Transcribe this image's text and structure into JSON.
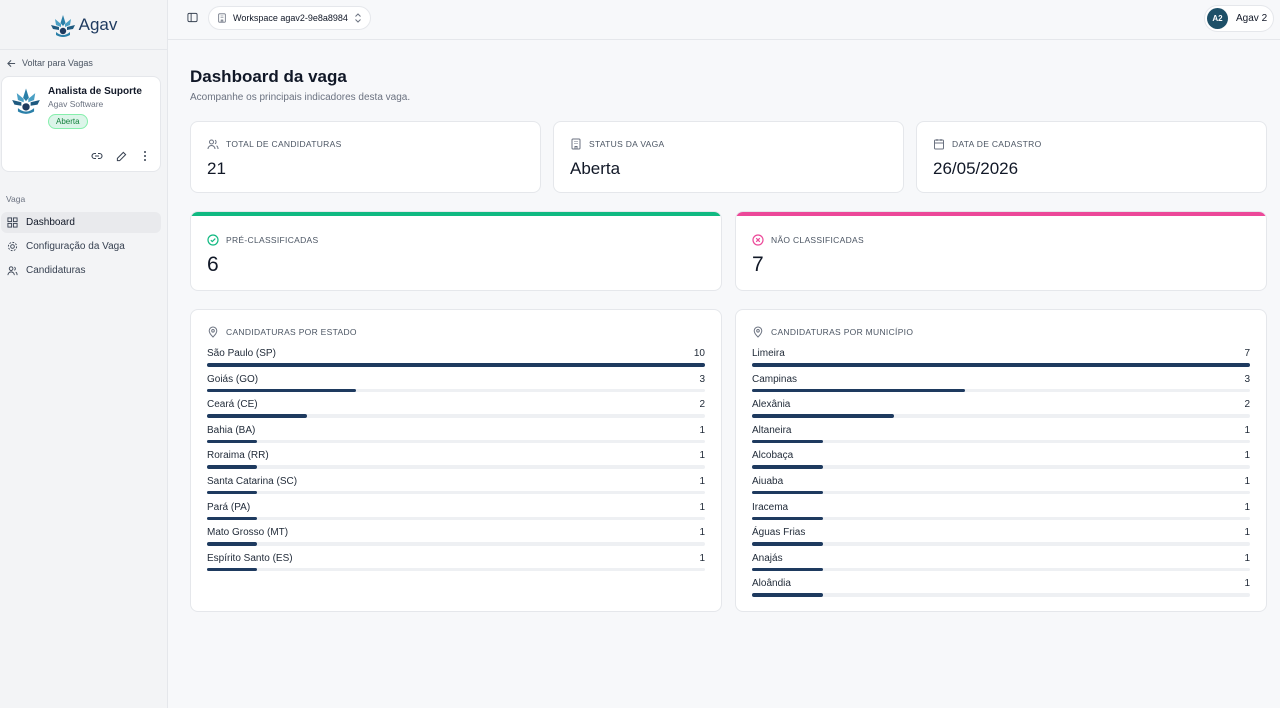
{
  "app": {
    "logo_text": "Agav"
  },
  "sidebar": {
    "back_label": "Voltar para Vagas",
    "job": {
      "title": "Analista de Suporte",
      "company": "Agav Software",
      "status": "Aberta"
    },
    "section_label": "Vaga",
    "nav": [
      {
        "label": "Dashboard",
        "icon": "dashboard-icon",
        "active": true
      },
      {
        "label": "Configuração da Vaga",
        "icon": "gear-icon",
        "active": false
      },
      {
        "label": "Candidaturas",
        "icon": "users-icon",
        "active": false
      }
    ]
  },
  "topbar": {
    "workspace": "Workspace agav2-9e8a8984",
    "user_initials": "A2",
    "user_name": "Agav 2"
  },
  "main": {
    "title": "Dashboard da vaga",
    "subtitle": "Acompanhe os principais indicadores desta vaga.",
    "kpis": [
      {
        "label": "TOTAL DE CANDIDATURAS",
        "value": "21",
        "icon": "users-icon"
      },
      {
        "label": "STATUS DA VAGA",
        "value": "Aberta",
        "icon": "building-icon"
      },
      {
        "label": "DATA DE CADASTRO",
        "value": "26/05/2026",
        "icon": "calendar-icon"
      }
    ],
    "classification": [
      {
        "label": "PRÉ-CLASSIFICADAS",
        "value": "6",
        "icon": "check-circle-icon",
        "color": "#10b981"
      },
      {
        "label": "NÃO CLASSIFICADAS",
        "value": "7",
        "icon": "x-circle-icon",
        "color": "#ec4899"
      }
    ],
    "by_state": {
      "title": "CANDIDATURAS POR ESTADO",
      "max": 10,
      "rows": [
        {
          "label": "São Paulo (SP)",
          "value": 10
        },
        {
          "label": "Goiás (GO)",
          "value": 3
        },
        {
          "label": "Ceará (CE)",
          "value": 2
        },
        {
          "label": "Bahia (BA)",
          "value": 1
        },
        {
          "label": "Roraima (RR)",
          "value": 1
        },
        {
          "label": "Santa Catarina (SC)",
          "value": 1
        },
        {
          "label": "Pará (PA)",
          "value": 1
        },
        {
          "label": "Mato Grosso (MT)",
          "value": 1
        },
        {
          "label": "Espírito Santo (ES)",
          "value": 1
        }
      ]
    },
    "by_city": {
      "title": "CANDIDATURAS POR MUNICÍPIO",
      "max": 7,
      "rows": [
        {
          "label": "Limeira",
          "value": 7
        },
        {
          "label": "Campinas",
          "value": 3
        },
        {
          "label": "Alexânia",
          "value": 2
        },
        {
          "label": "Altaneira",
          "value": 1
        },
        {
          "label": "Alcobaça",
          "value": 1
        },
        {
          "label": "Aiuaba",
          "value": 1
        },
        {
          "label": "Iracema",
          "value": 1
        },
        {
          "label": "Águas Frias",
          "value": 1
        },
        {
          "label": "Anajás",
          "value": 1
        },
        {
          "label": "Aloândia",
          "value": 1
        }
      ]
    }
  }
}
